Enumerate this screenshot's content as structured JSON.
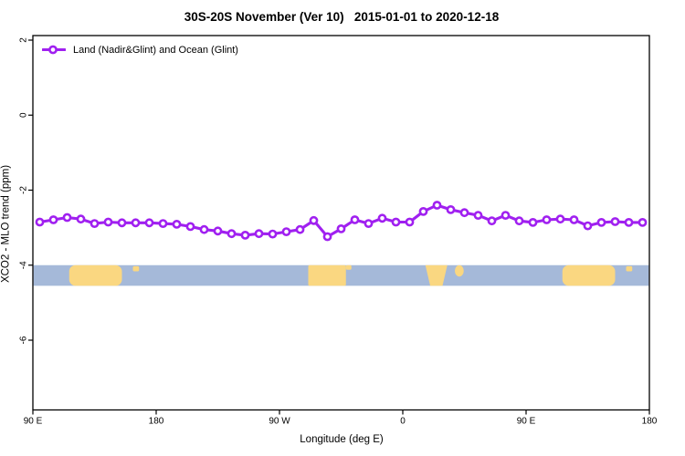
{
  "title": "30S-20S November (Ver 10)   2015-01-01 to 2020-12-18",
  "legend": {
    "label": "Land (Nadir&Glint) and Ocean (Glint)",
    "color": "#A020F0",
    "marker": "open-circle-on-line"
  },
  "chart_data": {
    "type": "line",
    "title": "30S-20S November (Ver 10)   2015-01-01 to 2020-12-18",
    "xlabel": "Longitude (deg E)",
    "ylabel": "XCO2 - MLO trend (ppm)",
    "xlim": [
      90,
      540
    ],
    "ylim": [
      -7.9,
      2.15
    ],
    "grid": false,
    "legend_position": "top-left",
    "x_ticks": [
      {
        "pos": 90,
        "label": "90 E"
      },
      {
        "pos": 180,
        "label": "180"
      },
      {
        "pos": 270,
        "label": "90 W"
      },
      {
        "pos": 360,
        "label": "0"
      },
      {
        "pos": 450,
        "label": "90 E"
      },
      {
        "pos": 540,
        "label": "180"
      }
    ],
    "y_ticks": [
      {
        "pos": 2,
        "label": "2"
      },
      {
        "pos": 0,
        "label": "0"
      },
      {
        "pos": -2,
        "label": "-2"
      },
      {
        "pos": -4,
        "label": "-4"
      },
      {
        "pos": -6,
        "label": "-6"
      }
    ],
    "x": [
      95,
      105,
      115,
      125,
      135,
      145,
      155,
      165,
      175,
      185,
      195,
      205,
      215,
      225,
      235,
      245,
      255,
      265,
      275,
      285,
      295,
      305,
      315,
      325,
      335,
      345,
      355,
      365,
      375,
      385,
      395,
      405,
      415,
      425,
      435,
      445,
      455,
      465,
      475,
      485,
      495,
      505,
      515,
      525,
      535
    ],
    "series": [
      {
        "name": "Land (Nadir&Glint) and Ocean (Glint)",
        "color": "#A020F0",
        "marker": "open-circle",
        "values": [
          -2.85,
          -2.79,
          -2.73,
          -2.77,
          -2.89,
          -2.85,
          -2.87,
          -2.87,
          -2.87,
          -2.89,
          -2.91,
          -2.97,
          -3.05,
          -3.09,
          -3.16,
          -3.2,
          -3.16,
          -3.17,
          -3.11,
          -3.05,
          -2.81,
          -3.24,
          -3.03,
          -2.79,
          -2.89,
          -2.75,
          -2.85,
          -2.85,
          -2.57,
          -2.4,
          -2.52,
          -2.6,
          -2.67,
          -2.82,
          -2.67,
          -2.82,
          -2.86,
          -2.79,
          -2.77,
          -2.79,
          -2.95,
          -2.86,
          -2.84,
          -2.86,
          -2.86
        ]
      }
    ]
  },
  "land_ocean_band": {
    "ocean_color": "#A5B9D9",
    "land_color": "#FAD781",
    "y_top_value": -4.0,
    "y_bottom_value": -4.55,
    "segments": [
      {
        "name": "australia",
        "lon": [
          116.5,
          155.0
        ],
        "v": [
          0,
          1
        ],
        "shape": "rounded"
      },
      {
        "name": "new-caledonia",
        "lon": [
          163.0,
          167.5
        ],
        "v": [
          0.05,
          0.3
        ],
        "shape": "rect"
      },
      {
        "name": "south-america",
        "lon": [
          291.0,
          318.5
        ],
        "v": [
          0,
          1
        ],
        "shape": "rect"
      },
      {
        "name": "brazil-east-tip",
        "lon": [
          318.5,
          322.5
        ],
        "v": [
          0,
          0.22
        ],
        "shape": "rect"
      },
      {
        "name": "southern-africa",
        "lon": [
          376.5,
          392.5
        ],
        "v": [
          0,
          1
        ],
        "shape": "taper"
      },
      {
        "name": "madagascar",
        "lon": [
          398.0,
          404.5
        ],
        "v": [
          0,
          0.55
        ],
        "shape": "rounded"
      },
      {
        "name": "australia-wrap",
        "lon": [
          476.5,
          515.0
        ],
        "v": [
          0,
          1
        ],
        "shape": "rounded"
      },
      {
        "name": "new-caledonia-wrap",
        "lon": [
          523.0,
          527.5
        ],
        "v": [
          0.05,
          0.3
        ],
        "shape": "rect"
      }
    ]
  },
  "colors": {
    "axis": "#000000",
    "tick_text": "#000000",
    "background": "#ffffff"
  }
}
